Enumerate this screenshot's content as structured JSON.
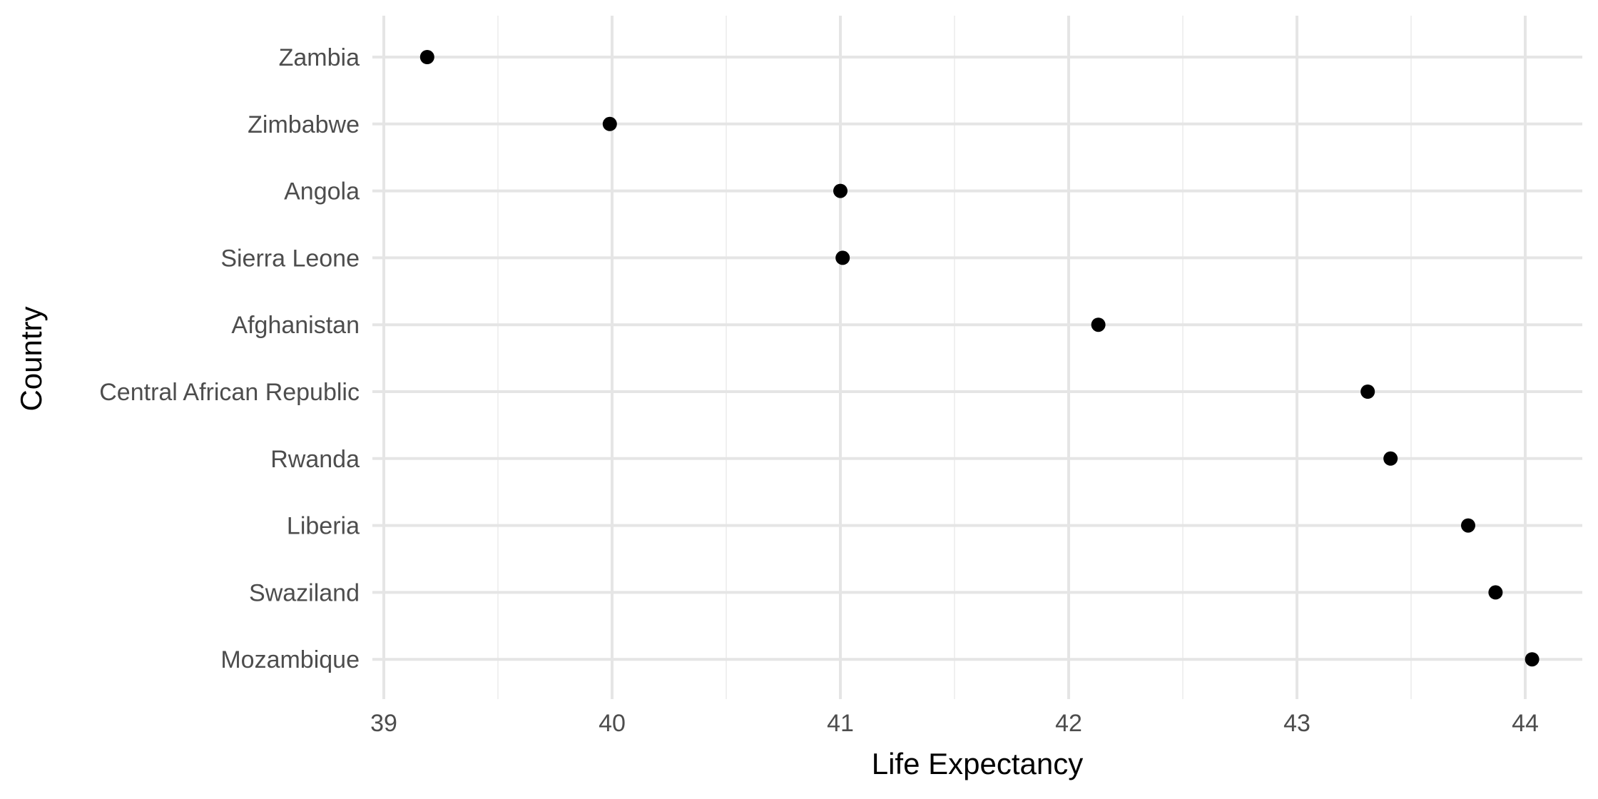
{
  "chart_data": {
    "type": "scatter",
    "title": "",
    "xlabel": "Life Expectancy",
    "ylabel": "Country",
    "xlim": [
      38.95,
      44.25
    ],
    "x_ticks": [
      39,
      40,
      41,
      42,
      43,
      44
    ],
    "x_tick_labels": [
      "39",
      "40",
      "41",
      "42",
      "43",
      "44"
    ],
    "grid": true,
    "legend": "none",
    "categories": [
      "Zambia",
      "Zimbabwe",
      "Angola",
      "Sierra Leone",
      "Afghanistan",
      "Central African Republic",
      "Rwanda",
      "Liberia",
      "Swaziland",
      "Mozambique"
    ],
    "series": [
      {
        "values": [
          39.19,
          39.99,
          41.0,
          41.01,
          42.13,
          43.31,
          43.41,
          43.75,
          43.87,
          44.03
        ]
      }
    ]
  },
  "colors": {
    "point": "#000000",
    "grid_major": "#e5e5e5",
    "grid_minor": "#f0f0f0",
    "tick_text": "#4d4d4d",
    "title_text": "#000000",
    "background": "#ffffff"
  }
}
